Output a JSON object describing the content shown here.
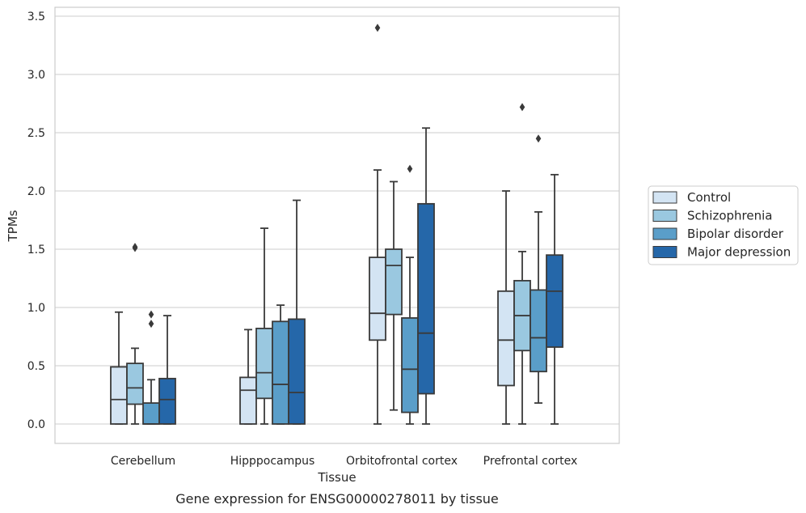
{
  "chart_data": {
    "type": "box",
    "caption": "Gene expression for ENSG00000278011 by tissue",
    "xlabel": "Tissue",
    "ylabel": "TPMs",
    "ylim": [
      -0.17,
      3.58
    ],
    "yticks": [
      0.0,
      0.5,
      1.0,
      1.5,
      2.0,
      2.5,
      3.0,
      3.5
    ],
    "ytick_labels": [
      "0.0",
      "0.5",
      "1.0",
      "1.5",
      "2.0",
      "2.5",
      "3.0",
      "3.5"
    ],
    "grid": "horizontal",
    "legend_position": "right",
    "categories": [
      "Cerebellum",
      "Hipppocampus",
      "Orbitofrontal cortex",
      "Prefrontal cortex"
    ],
    "series": [
      {
        "name": "Control",
        "color": "#d3e4f3",
        "boxes": [
          {
            "whislo": 0.0,
            "q1": 0.0,
            "med": 0.21,
            "q3": 0.49,
            "whishi": 0.96,
            "fliers": []
          },
          {
            "whislo": 0.0,
            "q1": 0.0,
            "med": 0.29,
            "q3": 0.4,
            "whishi": 0.81,
            "fliers": []
          },
          {
            "whislo": 0.0,
            "q1": 0.72,
            "med": 0.95,
            "q3": 1.43,
            "whishi": 2.18,
            "fliers": [
              3.4
            ]
          },
          {
            "whislo": 0.0,
            "q1": 0.33,
            "med": 0.72,
            "q3": 1.14,
            "whishi": 2.0,
            "fliers": []
          }
        ]
      },
      {
        "name": "Schizophrenia",
        "color": "#9ac8e0",
        "boxes": [
          {
            "whislo": 0.0,
            "q1": 0.17,
            "med": 0.31,
            "q3": 0.52,
            "whishi": 0.65,
            "fliers": [
              1.51,
              1.52
            ]
          },
          {
            "whislo": 0.0,
            "q1": 0.22,
            "med": 0.44,
            "q3": 0.82,
            "whishi": 1.68,
            "fliers": []
          },
          {
            "whislo": 0.12,
            "q1": 0.94,
            "med": 1.36,
            "q3": 1.5,
            "whishi": 2.08,
            "fliers": []
          },
          {
            "whislo": 0.0,
            "q1": 0.63,
            "med": 0.93,
            "q3": 1.23,
            "whishi": 1.48,
            "fliers": [
              2.72
            ]
          }
        ]
      },
      {
        "name": "Bipolar disorder",
        "color": "#5a9ec9",
        "boxes": [
          {
            "whislo": 0.0,
            "q1": 0.0,
            "med": 0.0,
            "q3": 0.18,
            "whishi": 0.38,
            "fliers": [
              0.86,
              0.94
            ]
          },
          {
            "whislo": 0.0,
            "q1": 0.0,
            "med": 0.34,
            "q3": 0.88,
            "whishi": 1.02,
            "fliers": []
          },
          {
            "whislo": 0.0,
            "q1": 0.1,
            "med": 0.47,
            "q3": 0.91,
            "whishi": 1.43,
            "fliers": [
              2.19
            ]
          },
          {
            "whislo": 0.18,
            "q1": 0.45,
            "med": 0.74,
            "q3": 1.15,
            "whishi": 1.82,
            "fliers": [
              2.45
            ]
          }
        ]
      },
      {
        "name": "Major depression",
        "color": "#2567a9",
        "boxes": [
          {
            "whislo": 0.0,
            "q1": 0.0,
            "med": 0.21,
            "q3": 0.39,
            "whishi": 0.93,
            "fliers": []
          },
          {
            "whislo": 0.0,
            "q1": 0.0,
            "med": 0.27,
            "q3": 0.9,
            "whishi": 1.92,
            "fliers": []
          },
          {
            "whislo": 0.0,
            "q1": 0.26,
            "med": 0.78,
            "q3": 1.89,
            "whishi": 2.54,
            "fliers": []
          },
          {
            "whislo": 0.0,
            "q1": 0.66,
            "med": 1.14,
            "q3": 1.45,
            "whishi": 2.14,
            "fliers": []
          }
        ]
      }
    ]
  }
}
